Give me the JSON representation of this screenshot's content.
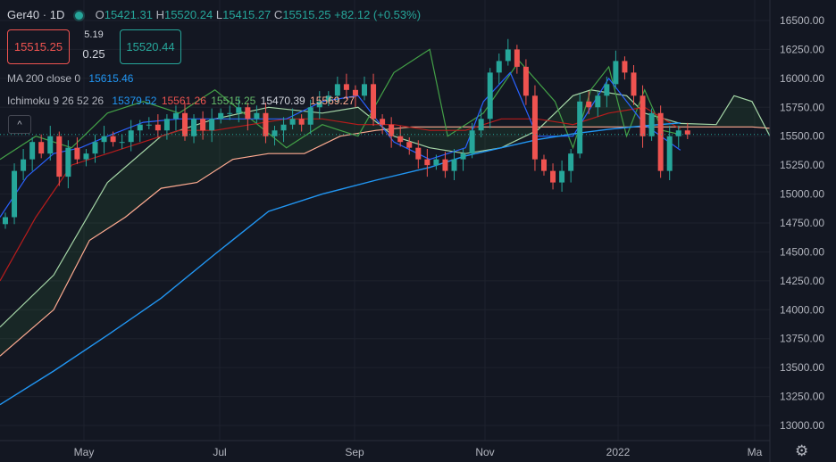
{
  "header": {
    "symbol": "Ger40",
    "interval": "1D",
    "o_label": "O",
    "o_value": "15421.31",
    "h_label": "H",
    "h_value": "15520.24",
    "l_label": "L",
    "l_value": "15415.27",
    "c_label": "C",
    "c_value": "15515.25",
    "change": "+82.12 (+0.53%)"
  },
  "trade": {
    "sell_price": "15515.25",
    "buy_price": "15520.44",
    "spread_top": "5.19",
    "spread_bottom": "0.25"
  },
  "indicators": {
    "ma": {
      "label": "MA 200 close 0",
      "value": "15615.46"
    },
    "ichimoku": {
      "label": "Ichimoku 9 26 52 26",
      "values": [
        "15379.52",
        "15561.26",
        "15515.25",
        "15470.39",
        "15569.27"
      ]
    }
  },
  "colors": {
    "background": "#131722",
    "up": "#26a69a",
    "down": "#ef5350",
    "ma": "#2196f3",
    "conversion": "#2962ff",
    "base": "#b71c1c",
    "lagging": "#43a047",
    "leadA": "#a5d6a7",
    "leadB": "#ffab91",
    "price_badge": "#26a69a"
  },
  "chart_data": {
    "type": "candlestick",
    "symbol": "Ger40",
    "interval": "1D",
    "x_ticks": [
      "May",
      "Jul",
      "Sep",
      "Nov",
      "2022",
      "Ma"
    ],
    "y_ticks": [
      13000,
      13250,
      13500,
      13750,
      14000,
      14250,
      14500,
      14750,
      15000,
      15250,
      15500,
      15750,
      16000,
      16250,
      16500
    ],
    "ylim": [
      12900,
      16600
    ],
    "last_price": 15515.25,
    "last_price_label": "15515.25",
    "close_series": [
      14800,
      15200,
      15300,
      15450,
      15350,
      15500,
      15150,
      15400,
      15300,
      15350,
      15450,
      15500,
      15450,
      15450,
      15550,
      15600,
      15600,
      15550,
      15650,
      15700,
      15500,
      15650,
      15550,
      15650,
      15700,
      15700,
      15750,
      15650,
      15700,
      15500,
      15550,
      15600,
      15650,
      15600,
      15750,
      15800,
      15850,
      15950,
      15900,
      15850,
      15950,
      15650,
      15600,
      15500,
      15450,
      15400,
      15300,
      15250,
      15300,
      15200,
      15300,
      15350,
      15550,
      15650,
      16050,
      16150,
      16250,
      16100,
      15850,
      15300,
      15200,
      15100,
      15200,
      15350,
      15800,
      15750,
      15850,
      15950,
      16150,
      16050,
      15850,
      15500,
      15700,
      15200,
      15500,
      15550,
      15515
    ],
    "series": [
      {
        "name": "MA 200 close 0",
        "points": [
          [
            0,
            13180
          ],
          [
            6,
            13470
          ],
          [
            12,
            13780
          ],
          [
            18,
            14100
          ],
          [
            24,
            14480
          ],
          [
            30,
            14850
          ],
          [
            36,
            15000
          ],
          [
            42,
            15120
          ],
          [
            48,
            15230
          ],
          [
            52,
            15330
          ],
          [
            56,
            15400
          ],
          [
            60,
            15470
          ],
          [
            64,
            15520
          ],
          [
            68,
            15560
          ],
          [
            72,
            15590
          ],
          [
            76,
            15615
          ]
        ]
      },
      {
        "name": "Ichimoku 9 26 52 26",
        "component": "conversion",
        "points": [
          [
            0,
            14800
          ],
          [
            3,
            15150
          ],
          [
            6,
            15350
          ],
          [
            9,
            15400
          ],
          [
            12,
            15500
          ],
          [
            16,
            15620
          ],
          [
            20,
            15650
          ],
          [
            24,
            15650
          ],
          [
            28,
            15650
          ],
          [
            32,
            15650
          ],
          [
            36,
            15800
          ],
          [
            40,
            15850
          ],
          [
            44,
            15450
          ],
          [
            48,
            15300
          ],
          [
            52,
            15400
          ],
          [
            54,
            15800
          ],
          [
            57,
            16050
          ],
          [
            60,
            15500
          ],
          [
            64,
            15500
          ],
          [
            68,
            16000
          ],
          [
            72,
            15600
          ],
          [
            76,
            15379
          ]
        ]
      },
      {
        "name": "Ichimoku 9 26 52 26",
        "component": "base",
        "points": [
          [
            0,
            14250
          ],
          [
            4,
            14800
          ],
          [
            8,
            15250
          ],
          [
            12,
            15350
          ],
          [
            16,
            15450
          ],
          [
            20,
            15550
          ],
          [
            24,
            15550
          ],
          [
            28,
            15600
          ],
          [
            32,
            15650
          ],
          [
            36,
            15650
          ],
          [
            40,
            15600
          ],
          [
            44,
            15600
          ],
          [
            48,
            15550
          ],
          [
            52,
            15550
          ],
          [
            56,
            15650
          ],
          [
            60,
            15650
          ],
          [
            64,
            15600
          ],
          [
            68,
            15700
          ],
          [
            72,
            15750
          ],
          [
            76,
            15561
          ]
        ]
      },
      {
        "name": "Ichimoku 9 26 52 26",
        "component": "lagging",
        "points": [
          [
            0,
            15300
          ],
          [
            4,
            15500
          ],
          [
            8,
            15400
          ],
          [
            12,
            15700
          ],
          [
            16,
            15800
          ],
          [
            20,
            15700
          ],
          [
            24,
            15900
          ],
          [
            28,
            15650
          ],
          [
            32,
            15400
          ],
          [
            36,
            15600
          ],
          [
            40,
            15500
          ],
          [
            44,
            16050
          ],
          [
            48,
            16250
          ],
          [
            50,
            15500
          ],
          [
            54,
            15700
          ],
          [
            58,
            16150
          ],
          [
            62,
            15800
          ],
          [
            64,
            15400
          ],
          [
            66,
            15900
          ],
          [
            68,
            16100
          ],
          [
            70,
            15500
          ],
          [
            72,
            15900
          ],
          [
            74,
            15550
          ],
          [
            76,
            15515
          ]
        ]
      },
      {
        "name": "Ichimoku 9 26 52 26",
        "component": "leadA",
        "points": [
          [
            0,
            13850
          ],
          [
            6,
            14300
          ],
          [
            12,
            15100
          ],
          [
            18,
            15500
          ],
          [
            24,
            15650
          ],
          [
            30,
            15750
          ],
          [
            36,
            15700
          ],
          [
            40,
            15750
          ],
          [
            44,
            15500
          ],
          [
            48,
            15400
          ],
          [
            52,
            15350
          ],
          [
            56,
            15400
          ],
          [
            60,
            15550
          ],
          [
            64,
            15850
          ],
          [
            66,
            15900
          ],
          [
            70,
            15850
          ],
          [
            72,
            15700
          ],
          [
            76,
            15610
          ],
          [
            80,
            15600
          ],
          [
            82,
            15850
          ],
          [
            84,
            15800
          ],
          [
            86,
            15500
          ]
        ]
      },
      {
        "name": "Ichimoku 9 26 52 26",
        "component": "leadB",
        "points": [
          [
            0,
            13600
          ],
          [
            6,
            14000
          ],
          [
            10,
            14600
          ],
          [
            14,
            14800
          ],
          [
            18,
            15050
          ],
          [
            22,
            15100
          ],
          [
            26,
            15300
          ],
          [
            30,
            15350
          ],
          [
            34,
            15350
          ],
          [
            38,
            15500
          ],
          [
            42,
            15550
          ],
          [
            46,
            15580
          ],
          [
            50,
            15580
          ],
          [
            54,
            15580
          ],
          [
            58,
            15580
          ],
          [
            62,
            15580
          ],
          [
            66,
            15580
          ],
          [
            70,
            15580
          ],
          [
            74,
            15580
          ],
          [
            78,
            15580
          ],
          [
            84,
            15580
          ],
          [
            86,
            15569
          ]
        ]
      }
    ]
  }
}
